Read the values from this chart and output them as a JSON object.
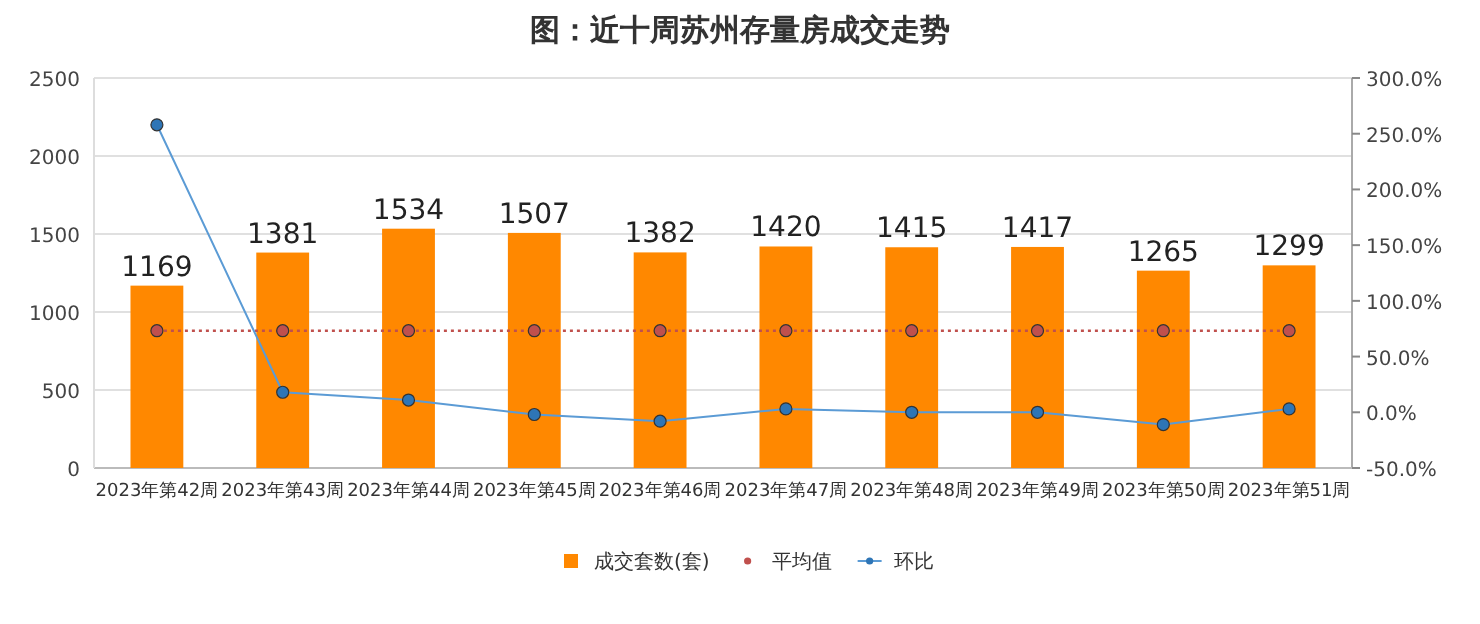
{
  "chart_data": {
    "type": "bar",
    "title": "图：近十周苏州存量房成交走势",
    "categories": [
      "2023年第42周",
      "2023年第43周",
      "2023年第44周",
      "2023年第45周",
      "2023年第46周",
      "2023年第47周",
      "2023年第48周",
      "2023年第49周",
      "2023年第50周",
      "2023年第51周"
    ],
    "series": [
      {
        "name": "成交套数(套)",
        "color": "#ff8800",
        "values": [
          1169,
          1381,
          1534,
          1507,
          1382,
          1420,
          1415,
          1417,
          1265,
          1299
        ],
        "value_labels": [
          "1169",
          "1381",
          "1534",
          "1507",
          "1382",
          "1420",
          "1415",
          "1417",
          "1265",
          "1299"
        ]
      },
      {
        "name": "平均值",
        "type": "line",
        "line_style": "dotted",
        "color": "#c0504d",
        "values": [
          880,
          880,
          880,
          880,
          880,
          880,
          880,
          880,
          880,
          880
        ]
      },
      {
        "name": "环比",
        "type": "line",
        "axis": "y2",
        "color": "#5b9bd5",
        "values": [
          258,
          18,
          11,
          -2,
          -8,
          3,
          0,
          0,
          -11,
          3
        ]
      }
    ],
    "ylim": [
      0,
      2500
    ],
    "yticks": [
      0,
      500,
      1000,
      1500,
      2000,
      2500
    ],
    "y2lim": [
      -50,
      300
    ],
    "y2ticks": [
      {
        "value": -50,
        "label": "-50.0%"
      },
      {
        "value": 0,
        "label": "0.0%"
      },
      {
        "value": 50,
        "label": "50.0%"
      },
      {
        "value": 100,
        "label": "100.0%"
      },
      {
        "value": 150,
        "label": "150.0%"
      },
      {
        "value": 200,
        "label": "200.0%"
      },
      {
        "value": 250,
        "label": "250.0%"
      },
      {
        "value": 300,
        "label": "300.0%"
      }
    ],
    "grid": "y",
    "legend": "bottom",
    "marker": "circle"
  }
}
